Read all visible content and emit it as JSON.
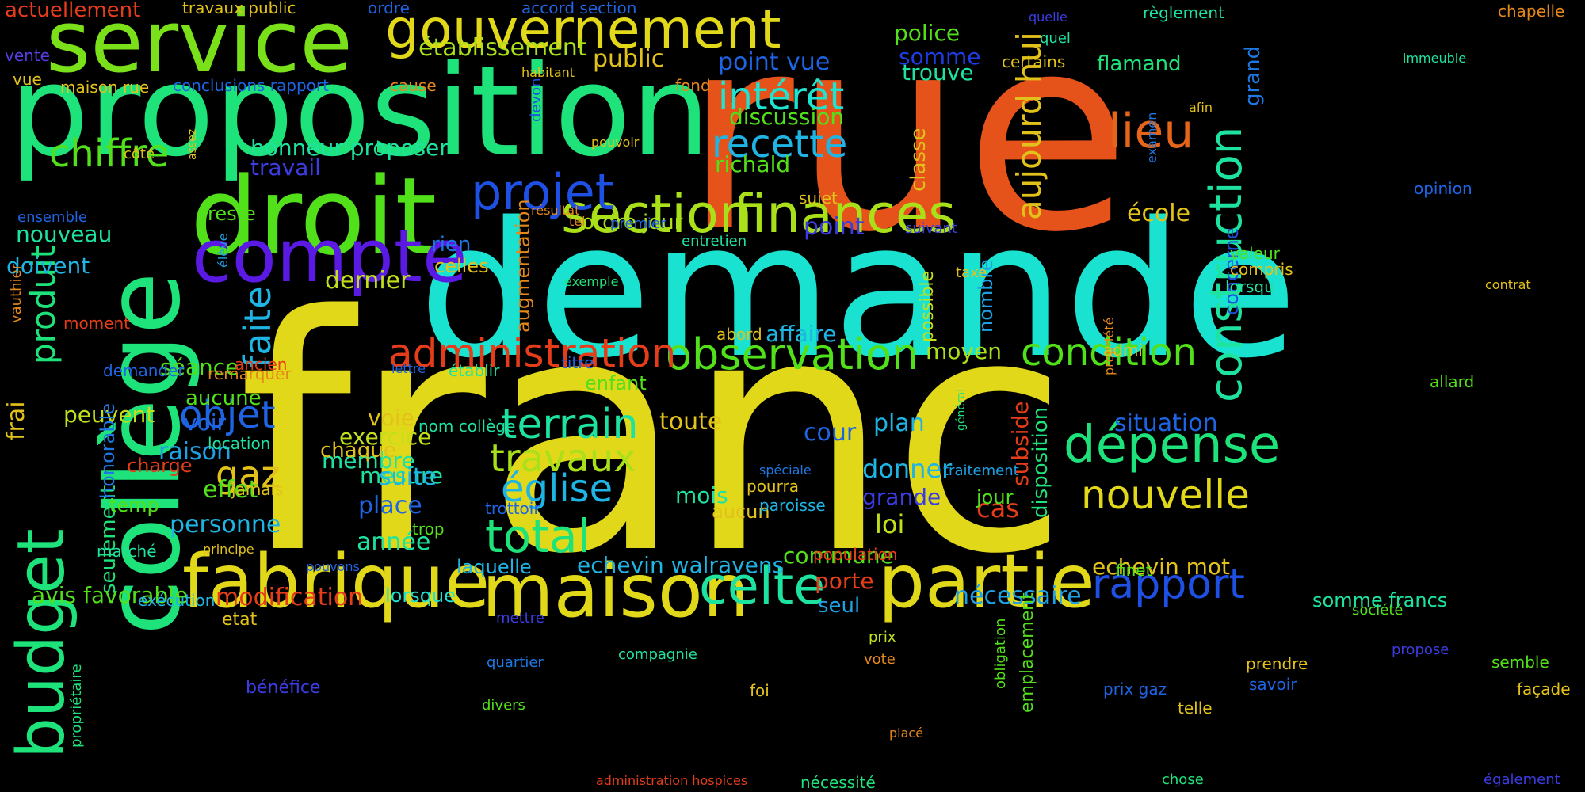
{
  "words": [
    {
      "text": "rue",
      "color": "#e5531a"
    },
    {
      "text": "franc",
      "color": "#e2d81a"
    },
    {
      "text": "demande",
      "color": "#19e3d0"
    },
    {
      "text": "proposition",
      "color": "#1ee37a"
    },
    {
      "text": "collège",
      "color": "#1ee37a"
    },
    {
      "text": "droit",
      "color": "#52e01a"
    },
    {
      "text": "service",
      "color": "#7ae01a"
    },
    {
      "text": "compte",
      "color": "#5a1ae3"
    },
    {
      "text": "maison",
      "color": "#e2d81a"
    },
    {
      "text": "fabrique",
      "color": "#e2d81a"
    },
    {
      "text": "partie",
      "color": "#e2d81a"
    },
    {
      "text": "budget",
      "color": "#1ee37a"
    },
    {
      "text": "gouvernement",
      "color": "#e2d81a"
    },
    {
      "text": "finances",
      "color": "#a9e01a"
    },
    {
      "text": "section",
      "color": "#a9e01a"
    },
    {
      "text": "projet",
      "color": "#1e50e3"
    },
    {
      "text": "observation",
      "color": "#52e01a"
    },
    {
      "text": "administration",
      "color": "#e53c1a"
    },
    {
      "text": "construction",
      "color": "#1ee3a0"
    },
    {
      "text": "celte",
      "color": "#1ee3a0"
    },
    {
      "text": "dépense",
      "color": "#1ee37a"
    },
    {
      "text": "nouvelle",
      "color": "#e2d81a"
    },
    {
      "text": "rapport",
      "color": "#1e50e3"
    },
    {
      "text": "condition",
      "color": "#52e01a"
    },
    {
      "text": "terrain",
      "color": "#1ee3a0"
    },
    {
      "text": "travaux",
      "color": "#a9e01a"
    },
    {
      "text": "église",
      "color": "#1eb4e3"
    },
    {
      "text": "total",
      "color": "#1ee37a"
    },
    {
      "text": "intérêt",
      "color": "#1ee3d0"
    },
    {
      "text": "recette",
      "color": "#1eb4e3"
    },
    {
      "text": "lieu",
      "color": "#e5651a"
    },
    {
      "text": "aujourd hui",
      "color": "#e2c21a"
    },
    {
      "text": "chiffre",
      "color": "#52e01a"
    },
    {
      "text": "faite",
      "color": "#1eb4e3"
    },
    {
      "text": "produit",
      "color": "#1ee37a"
    },
    {
      "text": "objet",
      "color": "#1e64e3"
    },
    {
      "text": "gaz",
      "color": "#e2c21a"
    },
    {
      "text": "établissement",
      "color": "#a9e01a"
    },
    {
      "text": "public",
      "color": "#e2c21a"
    },
    {
      "text": "point vue",
      "color": "#1e64e3"
    },
    {
      "text": "discussion",
      "color": "#52e01a"
    },
    {
      "text": "richald",
      "color": "#52e01a"
    },
    {
      "text": "honneur proposer",
      "color": "#1ee3a0"
    },
    {
      "text": "travail",
      "color": "#3c3ce3"
    },
    {
      "text": "police",
      "color": "#52e01a"
    },
    {
      "text": "somme",
      "color": "#1e3ce3"
    },
    {
      "text": "trouve",
      "color": "#1ee3a0"
    },
    {
      "text": "flamand",
      "color": "#1ee37a"
    },
    {
      "text": "classe",
      "color": "#e2c21a"
    },
    {
      "text": "école",
      "color": "#e2c21a"
    },
    {
      "text": "nombre",
      "color": "#1ea0e3"
    },
    {
      "text": "possible",
      "color": "#c2e01a"
    },
    {
      "text": "moyen",
      "color": "#a9e01a"
    },
    {
      "text": "augmentation",
      "color": "#e5871a"
    },
    {
      "text": "dernier",
      "color": "#c2e01a"
    },
    {
      "text": "séance",
      "color": "#52e01a"
    },
    {
      "text": "personne",
      "color": "#1eb4e3"
    },
    {
      "text": "membre",
      "color": "#1ee3a0"
    },
    {
      "text": "mesure",
      "color": "#1ee3a0"
    },
    {
      "text": "exercice",
      "color": "#c2e01a"
    },
    {
      "text": "voie",
      "color": "#e2c21a"
    },
    {
      "text": "toute",
      "color": "#e2c21a"
    },
    {
      "text": "plan",
      "color": "#1eb4e3"
    },
    {
      "text": "donner",
      "color": "#1eb4e3"
    },
    {
      "text": "grande",
      "color": "#3c3ce3"
    },
    {
      "text": "loi",
      "color": "#c2e01a"
    },
    {
      "text": "situation",
      "color": "#1e64e3"
    },
    {
      "text": "echevin mot",
      "color": "#e2c21a"
    },
    {
      "text": "echevin walravens",
      "color": "#1eb4e3"
    },
    {
      "text": "commune",
      "color": "#52e01a"
    },
    {
      "text": "année",
      "color": "#1ee3a0"
    },
    {
      "text": "place",
      "color": "#1e64e3"
    },
    {
      "text": "effet",
      "color": "#52e01a"
    },
    {
      "text": "raison",
      "color": "#1ea0e3"
    },
    {
      "text": "peuvent",
      "color": "#c2e01a"
    },
    {
      "text": "seulement",
      "color": "#1ee37a"
    },
    {
      "text": "honorable",
      "color": "#1e78e3"
    },
    {
      "text": "avis favorable",
      "color": "#52e01a"
    },
    {
      "text": "modification",
      "color": "#e53c1a"
    },
    {
      "text": "lorsque",
      "color": "#1ee3d0"
    },
    {
      "text": "laquelle",
      "color": "#1eb4e3"
    },
    {
      "text": "nécessaire",
      "color": "#1ea0e3"
    },
    {
      "text": "porte",
      "color": "#e53c1a"
    },
    {
      "text": "seul",
      "color": "#1ea0e3"
    },
    {
      "text": "cas",
      "color": "#e53c1a"
    },
    {
      "text": "subside",
      "color": "#e53c1a"
    },
    {
      "text": "disposition",
      "color": "#1ee37a"
    },
    {
      "text": "concerne",
      "color": "#1e50e3"
    },
    {
      "text": "grand",
      "color": "#1e78e3"
    },
    {
      "text": "mois",
      "color": "#1ee3a0"
    },
    {
      "text": "aucun",
      "color": "#e2c21a"
    },
    {
      "text": "cour",
      "color": "#1e64e3"
    },
    {
      "text": "rien",
      "color": "#1e78e3"
    },
    {
      "text": "celles",
      "color": "#e2c21a"
    },
    {
      "text": "ordre jour",
      "color": "#a9e01a"
    },
    {
      "text": "point",
      "color": "#3c3ce3"
    },
    {
      "text": "affaire",
      "color": "#1eb4e3"
    },
    {
      "text": "enfant",
      "color": "#52e01a"
    },
    {
      "text": "suite",
      "color": "#1eb4e3"
    },
    {
      "text": "chaque",
      "color": "#e2c21a"
    },
    {
      "text": "voir",
      "color": "#1e64e3"
    },
    {
      "text": "aucune",
      "color": "#52e01a"
    },
    {
      "text": "nouveau",
      "color": "#1ee3a0"
    },
    {
      "text": "doivent",
      "color": "#1eb4e3"
    },
    {
      "text": "reste",
      "color": "#52e01a"
    },
    {
      "text": "actuellement",
      "color": "#e53c1a"
    },
    {
      "text": "travaux public",
      "color": "#e2c21a"
    },
    {
      "text": "ordre",
      "color": "#1e64e3"
    },
    {
      "text": "accord section",
      "color": "#1e64e3"
    },
    {
      "text": "quelle",
      "color": "#3c3ce3"
    },
    {
      "text": "règlement",
      "color": "#1ee3a0"
    },
    {
      "text": "chapelle",
      "color": "#e5871a"
    },
    {
      "text": "vente",
      "color": "#5a3ce3"
    },
    {
      "text": "vue",
      "color": "#e2c21a"
    },
    {
      "text": "maison rue",
      "color": "#e2c21a"
    },
    {
      "text": "conclusions rapport",
      "color": "#1e64e3"
    },
    {
      "text": "cause",
      "color": "#e5871a"
    },
    {
      "text": "habitant",
      "color": "#e2c21a"
    },
    {
      "text": "fond",
      "color": "#e5871a"
    },
    {
      "text": "devon",
      "color": "#1e50e3"
    },
    {
      "text": "quel",
      "color": "#1ee3a0"
    },
    {
      "text": "certains",
      "color": "#e2c21a"
    },
    {
      "text": "immeuble",
      "color": "#1ee3a0"
    },
    {
      "text": "afin",
      "color": "#e2c21a"
    },
    {
      "text": "examen",
      "color": "#1e78e3"
    },
    {
      "text": "opinion",
      "color": "#1e64e3"
    },
    {
      "text": "côté",
      "color": "#e2c21a"
    },
    {
      "text": "assez",
      "color": "#e2c21a"
    },
    {
      "text": "pouvoir",
      "color": "#e2c21a"
    },
    {
      "text": "ensemble",
      "color": "#1e64e3"
    },
    {
      "text": "sujet",
      "color": "#e2c21a"
    },
    {
      "text": "résultat",
      "color": "#e5871a"
    },
    {
      "text": "tel",
      "color": "#e5871a"
    },
    {
      "text": "premier",
      "color": "#1e64e3"
    },
    {
      "text": "entretien",
      "color": "#1ee3a0"
    },
    {
      "text": "suivant",
      "color": "#3c3ce3"
    },
    {
      "text": "élève",
      "color": "#1ea0e3"
    },
    {
      "text": "exemple",
      "color": "#1ee37a"
    },
    {
      "text": "taxe",
      "color": "#e2c21a"
    },
    {
      "text": "valeur",
      "color": "#52e01a"
    },
    {
      "text": "compris",
      "color": "#e2c21a"
    },
    {
      "text": "lorsqu",
      "color": "#1ee3a0"
    },
    {
      "text": "contrat",
      "color": "#e2c21a"
    },
    {
      "text": "vauthier",
      "color": "#e5871a"
    },
    {
      "text": "moment",
      "color": "#e53c1a"
    },
    {
      "text": "frai",
      "color": "#e2c21a"
    },
    {
      "text": "propriété",
      "color": "#e5871a"
    },
    {
      "text": "admi",
      "color": "#e2c21a"
    },
    {
      "text": "abord",
      "color": "#e2c21a"
    },
    {
      "text": "titre",
      "color": "#1e64e3"
    },
    {
      "text": "ancien",
      "color": "#e53c1a"
    },
    {
      "text": "remarquer",
      "color": "#e5871a"
    },
    {
      "text": "lettre",
      "color": "#1e64e3"
    },
    {
      "text": "établir",
      "color": "#1ee3a0"
    },
    {
      "text": "demander",
      "color": "#1e64e3"
    },
    {
      "text": "général",
      "color": "#1ee37a"
    },
    {
      "text": "allard",
      "color": "#52e01a"
    },
    {
      "text": "location",
      "color": "#1ee3a0"
    },
    {
      "text": "nom collège",
      "color": "#1ee3a0"
    },
    {
      "text": "charge",
      "color": "#e53c1a"
    },
    {
      "text": "jamais",
      "color": "#e2c21a"
    },
    {
      "text": "temp",
      "color": "#52e01a"
    },
    {
      "text": "spéciale",
      "color": "#1e78e3"
    },
    {
      "text": "pourra",
      "color": "#e2c21a"
    },
    {
      "text": "paroisse",
      "color": "#1eb4e3"
    },
    {
      "text": "traitement",
      "color": "#1ea0e3"
    },
    {
      "text": "jour",
      "color": "#52e01a"
    },
    {
      "text": "marché",
      "color": "#1ee3a0"
    },
    {
      "text": "principe",
      "color": "#e2c21a"
    },
    {
      "text": "pouvons",
      "color": "#1e64e3"
    },
    {
      "text": "trottoir",
      "color": "#1e64e3"
    },
    {
      "text": "trop",
      "color": "#52e01a"
    },
    {
      "text": "population",
      "color": "#e53c1a"
    },
    {
      "text": "finet",
      "color": "#52e01a"
    },
    {
      "text": "exécution",
      "color": "#1eb4e3"
    },
    {
      "text": "etat",
      "color": "#e2c21a"
    },
    {
      "text": "mettre",
      "color": "#3c3ce3"
    },
    {
      "text": "emplacement",
      "color": "#52e01a"
    },
    {
      "text": "obligation",
      "color": "#52e01a"
    },
    {
      "text": "société",
      "color": "#52e01a"
    },
    {
      "text": "somme francs",
      "color": "#1ee3a0"
    },
    {
      "text": "propose",
      "color": "#3c3ce3"
    },
    {
      "text": "prix",
      "color": "#c2e01a"
    },
    {
      "text": "vote",
      "color": "#e5871a"
    },
    {
      "text": "compagnie",
      "color": "#1ee3a0"
    },
    {
      "text": "quartier",
      "color": "#1e78e3"
    },
    {
      "text": "divers",
      "color": "#52e01a"
    },
    {
      "text": "foi",
      "color": "#e2c21a"
    },
    {
      "text": "bénéfice",
      "color": "#3c3ce3"
    },
    {
      "text": "propriétaire",
      "color": "#1ee37a"
    },
    {
      "text": "prendre",
      "color": "#e2c21a"
    },
    {
      "text": "savoir",
      "color": "#1e64e3"
    },
    {
      "text": "semble",
      "color": "#52e01a"
    },
    {
      "text": "façade",
      "color": "#e2c21a"
    },
    {
      "text": "prix gaz",
      "color": "#1e64e3"
    },
    {
      "text": "telle",
      "color": "#e2c21a"
    },
    {
      "text": "placé",
      "color": "#e5871a"
    },
    {
      "text": "administration hospices",
      "color": "#e53c1a"
    },
    {
      "text": "nécessité",
      "color": "#1ee37a"
    },
    {
      "text": "chose",
      "color": "#1ee37a"
    },
    {
      "text": "également",
      "color": "#3c3ce3"
    }
  ]
}
